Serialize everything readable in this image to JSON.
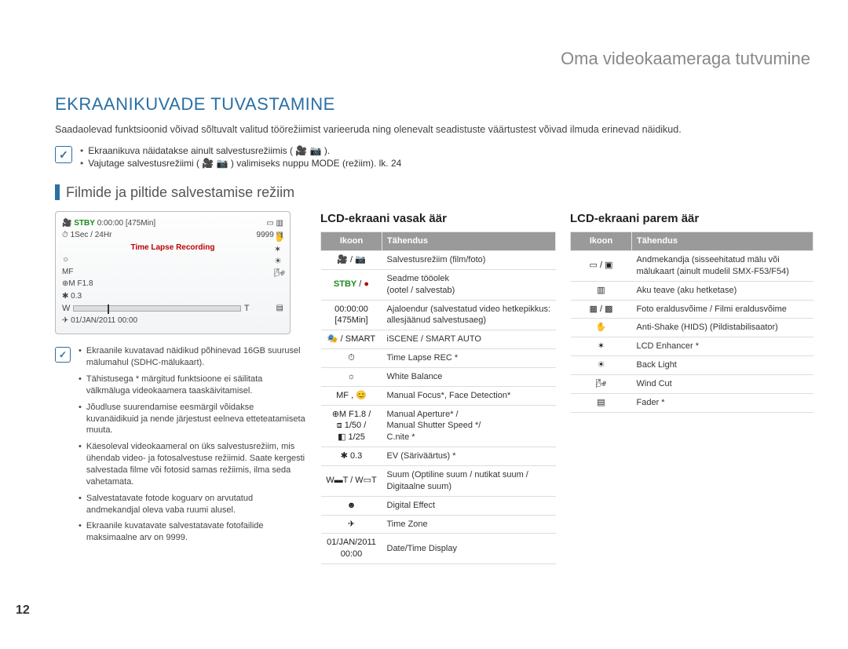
{
  "header": {
    "section_label": "Oma videokaameraga tutvumine",
    "title": "EKRAANIKUVADE TUVASTAMINE",
    "intro": "Saadaolevad funktsioonid võivad sõltuvalt valitud töörežiimist varieeruda ning olenevalt seadistuste väärtustest võivad ilmuda erinevad näidikud.",
    "note_checkmark": "✓",
    "notes": [
      "Ekraanikuva näidatakse ainult salvestusrežiimis ( 🎥 📷 ).",
      "Vajutage salvestusrežiimi ( 🎥 📷 ) valimiseks nuppu MODE (režiim).   lk. 24"
    ]
  },
  "subhead": "Filmide ja piltide salvestamise režiim",
  "lcd": {
    "stby": "STBY",
    "time": "0:00:00",
    "remain": "[475Min]",
    "sec_cnt": "1Sec /",
    "hours": "24Hr",
    "count": "9999",
    "tl_label": "Time Lapse Recording",
    "f18": "F1.8",
    "ev": "0.3",
    "w": "W",
    "t": "T",
    "date": "01/JAN/2011 00:00"
  },
  "info_notes": [
    "Ekraanile kuvatavad näidikud põhinevad 16GB suurusel mälumahul (SDHC-mälukaart).",
    "Tähistusega * märgitud funktsioone ei säilitata välkmäluga videokaamera taaskäivitamisel.",
    "Jõudluse suurendamise eesmärgil võidakse kuvanäidikuid ja nende järjestust eelneva etteteatamiseta muuta.",
    "Käesoleval videokaameral on üks salvestusrežiim, mis ühendab video- ja fotosalvestuse režiimid. Saate kergesti salvestada filme või fotosid samas režiimis, ilma seda vahetamata.",
    "Salvestatavate fotode koguarv on arvutatud andmekandjal oleva vaba ruumi alusel.",
    "Ekraanile kuvatavate salvestatavate fotofailide maksimaalne arv on 9999."
  ],
  "left_panel": {
    "title": "LCD-ekraani vasak äär",
    "col_icon": "Ikoon",
    "col_meaning": "Tähendus",
    "rows": [
      {
        "icon": "🎥 / 📷",
        "meaning": "Salvestusrežiim (film/foto)"
      },
      {
        "icon": "STBY / ●",
        "icon_html": true,
        "meaning": "Seadme tööolek\n(ootel / salvestab)"
      },
      {
        "icon": "00:00:00 [475Min]",
        "meaning": "Ajaloendur (salvestatud video hetkepikkus: allesjäänud salvestusaeg)"
      },
      {
        "icon": "🎭 / SMART",
        "meaning": "iSCENE / SMART AUTO"
      },
      {
        "icon": "⏱",
        "meaning": "Time Lapse REC *"
      },
      {
        "icon": "☼",
        "meaning": "White Balance"
      },
      {
        "icon": "MF , 😊",
        "meaning": "Manual Focus*, Face Detection*"
      },
      {
        "icon": "⊕M F1.8 /\n⧈ 1/50 /\n◧ 1/25",
        "meaning": "Manual Aperture* /\nManual Shutter Speed */\nC.nite *"
      },
      {
        "icon": "✱ 0.3",
        "meaning": "EV (Säriväärtus) *"
      },
      {
        "icon": "W▬T / W▭T",
        "meaning": "Suum (Optiline suum / nutikat suum / Digitaalne suum)"
      },
      {
        "icon": "☻",
        "meaning": "Digital Effect"
      },
      {
        "icon": "✈",
        "meaning": "Time Zone"
      },
      {
        "icon": "01/JAN/2011 00:00",
        "meaning": "Date/Time Display"
      }
    ]
  },
  "right_panel": {
    "title": "LCD-ekraani parem äär",
    "col_icon": "Ikoon",
    "col_meaning": "Tähendus",
    "rows": [
      {
        "icon": "▭ / ▣",
        "meaning": "Andmekandja (sisseehitatud mälu või mälukaart (ainult mudelil SMX-F53/F54)"
      },
      {
        "icon": "▥",
        "meaning": "Aku teave (aku hetketase)"
      },
      {
        "icon": "▦ / ▩",
        "meaning": "Foto eraldusvõime / Filmi eraldusvõime"
      },
      {
        "icon": "✋",
        "meaning": "Anti-Shake (HIDS) (Pildistabilisaator)"
      },
      {
        "icon": "✶",
        "meaning": "LCD Enhancer *"
      },
      {
        "icon": "☀",
        "meaning": "Back Light"
      },
      {
        "icon": "🌬",
        "meaning": "Wind Cut"
      },
      {
        "icon": "▤",
        "meaning": "Fader *"
      }
    ]
  },
  "page_number": "12"
}
